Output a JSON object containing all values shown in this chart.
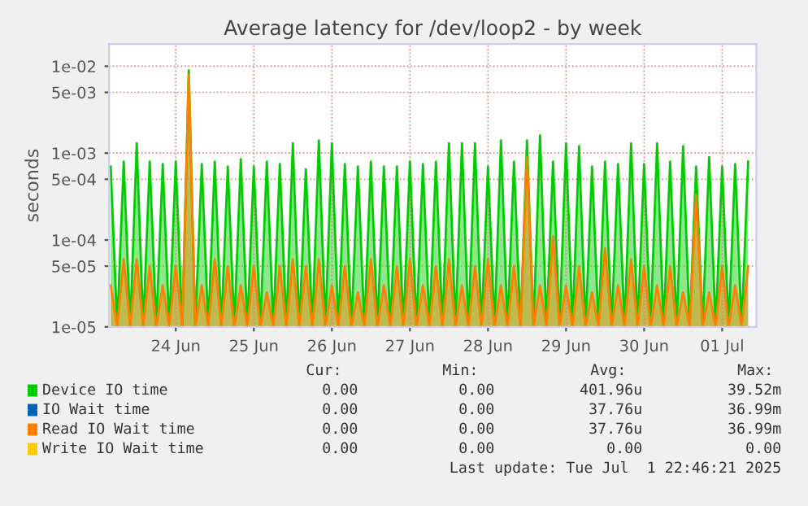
{
  "chart_data": {
    "type": "area",
    "title": "Average latency for /dev/loop2 - by week",
    "ylabel": "seconds",
    "log": "y",
    "grid": true,
    "legend": "bottom",
    "xlim": [
      "2025-06-23T15:30",
      "2025-07-01T22:30"
    ],
    "xticks": [
      {
        "value": "2025-06-24T12:00",
        "label": "24 Jun"
      },
      {
        "value": "2025-06-25T12:00",
        "label": "25 Jun"
      },
      {
        "value": "2025-06-26T12:00",
        "label": "26 Jun"
      },
      {
        "value": "2025-06-27T12:00",
        "label": "27 Jun"
      },
      {
        "value": "2025-06-28T12:00",
        "label": "28 Jun"
      },
      {
        "value": "2025-06-29T12:00",
        "label": "29 Jun"
      },
      {
        "value": "2025-06-30T12:00",
        "label": "30 Jun"
      },
      {
        "value": "2025-07-01T12:00",
        "label": "01 Jul"
      }
    ],
    "ylim": [
      1e-05,
      0.018
    ],
    "yticks": [
      {
        "value": 1e-05,
        "label": "1e-05"
      },
      {
        "value": 5e-05,
        "label": "5e-05"
      },
      {
        "value": 0.0001,
        "label": "1e-04"
      },
      {
        "value": 0.0005,
        "label": "5e-04"
      },
      {
        "value": 0.001,
        "label": "1e-03"
      },
      {
        "value": 0.005,
        "label": "5e-03"
      },
      {
        "value": 0.01,
        "label": "1e-02"
      }
    ],
    "x": [
      "2025-06-23T16:00",
      "2025-06-23T18:00",
      "2025-06-23T20:00",
      "2025-06-23T22:00",
      "2025-06-24T00:00",
      "2025-06-24T02:00",
      "2025-06-24T04:00",
      "2025-06-24T06:00",
      "2025-06-24T08:00",
      "2025-06-24T10:00",
      "2025-06-24T12:00",
      "2025-06-24T14:00",
      "2025-06-24T16:00",
      "2025-06-24T18:00",
      "2025-06-24T20:00",
      "2025-06-24T22:00",
      "2025-06-25T00:00",
      "2025-06-25T02:00",
      "2025-06-25T04:00",
      "2025-06-25T06:00",
      "2025-06-25T08:00",
      "2025-06-25T10:00",
      "2025-06-25T12:00",
      "2025-06-25T14:00",
      "2025-06-25T16:00",
      "2025-06-25T18:00",
      "2025-06-25T20:00",
      "2025-06-25T22:00",
      "2025-06-26T00:00",
      "2025-06-26T02:00",
      "2025-06-26T04:00",
      "2025-06-26T06:00",
      "2025-06-26T08:00",
      "2025-06-26T10:00",
      "2025-06-26T12:00",
      "2025-06-26T14:00",
      "2025-06-26T16:00",
      "2025-06-26T18:00",
      "2025-06-26T20:00",
      "2025-06-26T22:00",
      "2025-06-27T00:00",
      "2025-06-27T02:00",
      "2025-06-27T04:00",
      "2025-06-27T06:00",
      "2025-06-27T08:00",
      "2025-06-27T10:00",
      "2025-06-27T12:00",
      "2025-06-27T14:00",
      "2025-06-27T16:00",
      "2025-06-27T18:00",
      "2025-06-27T20:00",
      "2025-06-27T22:00",
      "2025-06-28T00:00",
      "2025-06-28T02:00",
      "2025-06-28T04:00",
      "2025-06-28T06:00",
      "2025-06-28T08:00",
      "2025-06-28T10:00",
      "2025-06-28T12:00",
      "2025-06-28T14:00",
      "2025-06-28T16:00",
      "2025-06-28T18:00",
      "2025-06-28T20:00",
      "2025-06-28T22:00",
      "2025-06-29T00:00",
      "2025-06-29T02:00",
      "2025-06-29T04:00",
      "2025-06-29T06:00",
      "2025-06-29T08:00",
      "2025-06-29T10:00",
      "2025-06-29T12:00",
      "2025-06-29T14:00",
      "2025-06-29T16:00",
      "2025-06-29T18:00",
      "2025-06-29T20:00",
      "2025-06-29T22:00",
      "2025-06-30T00:00",
      "2025-06-30T02:00",
      "2025-06-30T04:00",
      "2025-06-30T06:00",
      "2025-06-30T08:00",
      "2025-06-30T10:00",
      "2025-06-30T12:00",
      "2025-06-30T14:00",
      "2025-06-30T16:00",
      "2025-06-30T18:00",
      "2025-06-30T20:00",
      "2025-06-30T22:00",
      "2025-07-01T00:00",
      "2025-07-01T02:00",
      "2025-07-01T04:00",
      "2025-07-01T06:00",
      "2025-07-01T08:00",
      "2025-07-01T10:00",
      "2025-07-01T12:00",
      "2025-07-01T14:00",
      "2025-07-01T16:00",
      "2025-07-01T18:00",
      "2025-07-01T20:00"
    ],
    "series": [
      {
        "name": "Device IO time",
        "color": "#00cc00",
        "values": [
          0.0007,
          1e-05,
          0.0008,
          1e-05,
          0.0013,
          1e-05,
          0.0008,
          1e-05,
          0.00075,
          1e-05,
          0.0008,
          1e-05,
          0.009,
          1e-05,
          0.00075,
          1e-05,
          0.0008,
          1e-05,
          0.0007,
          1e-05,
          0.00085,
          1e-05,
          0.0007,
          1e-05,
          0.0008,
          1e-05,
          0.00075,
          1e-05,
          0.0013,
          1e-05,
          0.00065,
          1e-05,
          0.0014,
          1e-05,
          0.0013,
          1e-05,
          0.00075,
          1e-05,
          0.0007,
          1e-05,
          0.0008,
          1e-05,
          0.0007,
          1e-05,
          0.0007,
          1e-05,
          0.0008,
          1e-05,
          0.00075,
          1e-05,
          0.0008,
          1e-05,
          0.0013,
          1e-05,
          0.0013,
          1e-05,
          0.0013,
          1e-05,
          0.0007,
          1e-05,
          0.0014,
          1e-05,
          0.0008,
          1e-05,
          0.0014,
          1e-05,
          0.0016,
          1e-05,
          0.0008,
          1e-05,
          0.0013,
          1e-05,
          0.0012,
          1e-05,
          0.0007,
          1e-05,
          0.0008,
          1e-05,
          0.00075,
          1e-05,
          0.0013,
          1e-05,
          0.00075,
          1e-05,
          0.0013,
          1e-05,
          0.0008,
          1e-05,
          0.0012,
          1e-05,
          0.0007,
          1e-05,
          0.0009,
          1e-05,
          0.0007,
          1e-05,
          0.00075,
          1e-05,
          0.0008
        ]
      },
      {
        "name": "IO Wait time",
        "color": "#0066b3",
        "values": [
          null,
          null,
          null,
          null,
          null,
          null,
          null,
          null,
          null,
          null,
          null,
          null,
          null,
          null,
          null,
          null,
          null,
          null,
          null,
          null,
          null,
          null,
          null,
          null,
          null,
          null,
          null,
          null,
          null,
          null,
          null,
          null,
          null,
          null,
          null,
          null,
          null,
          null,
          null,
          null,
          null,
          null,
          null,
          null,
          null,
          null,
          null,
          null,
          null,
          null,
          null,
          null,
          null,
          null,
          null,
          null,
          null,
          null,
          null,
          null,
          null,
          null,
          null,
          null,
          null,
          null,
          null,
          null,
          null,
          null,
          null,
          null,
          null,
          null,
          null,
          null,
          null,
          null,
          null,
          null,
          null,
          null,
          null,
          null,
          null,
          null,
          null,
          null,
          null,
          null,
          null,
          null,
          null,
          null,
          null,
          null,
          null,
          null,
          null
        ]
      },
      {
        "name": "Read IO Wait time",
        "color": "#ff8000",
        "values": [
          3e-05,
          1e-05,
          6e-05,
          1e-05,
          6e-05,
          1e-05,
          5e-05,
          1e-05,
          3e-05,
          1e-05,
          5e-05,
          1e-05,
          0.008,
          1e-05,
          3e-05,
          1e-05,
          6e-05,
          1e-05,
          5e-05,
          1e-05,
          3e-05,
          1e-05,
          5e-05,
          1e-05,
          2.5e-05,
          1e-05,
          5e-05,
          1e-05,
          6e-05,
          1e-05,
          5e-05,
          1e-05,
          6e-05,
          1e-05,
          3e-05,
          1e-05,
          5e-05,
          1e-05,
          2.5e-05,
          1e-05,
          6e-05,
          1e-05,
          3e-05,
          1e-05,
          5e-05,
          1e-05,
          6e-05,
          1e-05,
          3e-05,
          1e-05,
          5e-05,
          1e-05,
          6e-05,
          1e-05,
          3e-05,
          1e-05,
          5e-05,
          1e-05,
          6e-05,
          1e-05,
          3e-05,
          1e-05,
          5e-05,
          1e-05,
          0.0009,
          1e-05,
          3e-05,
          1e-05,
          0.00011,
          1e-05,
          3e-05,
          1e-05,
          5e-05,
          1e-05,
          2.5e-05,
          1e-05,
          8e-05,
          1e-05,
          3e-05,
          1e-05,
          6e-05,
          1e-05,
          5e-05,
          1e-05,
          3e-05,
          1e-05,
          5e-05,
          1e-05,
          2.5e-05,
          1e-05,
          0.00033,
          1e-05,
          2.5e-05,
          1e-05,
          5e-05,
          1e-05,
          3e-05,
          1e-05,
          5e-05
        ]
      },
      {
        "name": "Write IO Wait time",
        "color": "#ffcc00",
        "values": [
          null,
          null,
          null,
          null,
          null,
          null,
          null,
          null,
          null,
          null,
          null,
          null,
          null,
          null,
          null,
          null,
          null,
          null,
          null,
          null,
          null,
          null,
          null,
          null,
          null,
          null,
          null,
          null,
          null,
          null,
          null,
          null,
          null,
          null,
          null,
          null,
          null,
          null,
          null,
          null,
          null,
          null,
          null,
          null,
          null,
          null,
          null,
          null,
          null,
          null,
          null,
          null,
          null,
          null,
          null,
          null,
          null,
          null,
          null,
          null,
          null,
          null,
          null,
          null,
          null,
          null,
          null,
          null,
          null,
          null,
          null,
          null,
          null,
          null,
          null,
          null,
          null,
          null,
          null,
          null,
          null,
          null,
          null,
          null,
          null,
          null,
          null,
          null,
          null,
          null,
          null,
          null,
          null,
          null,
          null,
          null,
          null,
          null,
          null
        ]
      }
    ],
    "annotations": [
      "Cur:",
      "Min:",
      "Avg:",
      "Max:",
      "0.00",
      "0.00",
      "401.96u",
      "39.52m",
      "0.00",
      "0.00",
      "37.76u",
      "36.99m",
      "0.00",
      "0.00",
      "37.76u",
      "36.99m",
      "0.00",
      "0.00",
      "0.00",
      "0.00",
      "Last update: Tue Jul  1 22:46:21 2025"
    ]
  }
}
